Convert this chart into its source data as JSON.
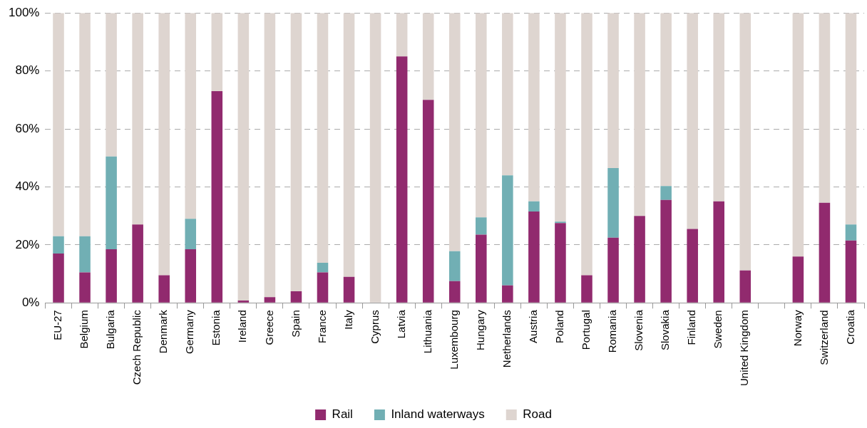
{
  "chart_data": {
    "type": "bar",
    "stacked": true,
    "categories": [
      "EU-27",
      "Belgium",
      "Bulgaria",
      "Czech Republic",
      "Denmark",
      "Germany",
      "Estonia",
      "Ireland",
      "Greece",
      "Spain",
      "France",
      "Italy",
      "Cyprus",
      "Latvia",
      "Lithuania",
      "Luxembourg",
      "Hungary",
      "Netherlands",
      "Austria",
      "Poland",
      "Portugal",
      "Romania",
      "Slovenia",
      "Slovakia",
      "Finland",
      "Sweden",
      "United Kingdom",
      null,
      "Norway",
      "Switzerland",
      "Croatia"
    ],
    "series": [
      {
        "name": "Rail",
        "color": "#912a6e",
        "values": [
          17,
          10.5,
          18.5,
          27,
          9.5,
          18.5,
          73,
          0.8,
          2,
          4,
          10.5,
          9,
          0,
          85,
          70,
          7.5,
          23.5,
          6,
          31.5,
          27.5,
          9.5,
          22.5,
          30,
          35.5,
          25.5,
          35,
          11.2,
          null,
          16,
          34.5,
          21.5
        ]
      },
      {
        "name": "Inland waterways",
        "color": "#71afb4",
        "values": [
          6,
          12.5,
          32,
          0,
          0,
          10.5,
          0,
          0,
          0,
          0,
          3.3,
          0,
          0,
          0,
          0,
          10.3,
          6,
          38,
          3.5,
          0.5,
          0,
          24,
          0,
          4.8,
          0,
          0,
          0,
          null,
          0,
          0,
          5.5
        ]
      },
      {
        "name": "Road",
        "color": "#ded5d0",
        "values": [
          77,
          77,
          49.5,
          73,
          90.5,
          71,
          27,
          99.2,
          98,
          96,
          86.2,
          91,
          100,
          15,
          30,
          82.2,
          70.5,
          56,
          65,
          72,
          90.5,
          53.5,
          70,
          59.7,
          74.5,
          65,
          88.8,
          null,
          84,
          65.5,
          73
        ]
      }
    ],
    "ylim": [
      0,
      100
    ],
    "yticks": [
      {
        "value": 0,
        "label": "0%"
      },
      {
        "value": 20,
        "label": "20%"
      },
      {
        "value": 40,
        "label": "40%"
      },
      {
        "value": 60,
        "label": "60%"
      },
      {
        "value": 80,
        "label": "80%"
      },
      {
        "value": 100,
        "label": "100%"
      }
    ],
    "grid": "y",
    "legend": "bottom"
  }
}
